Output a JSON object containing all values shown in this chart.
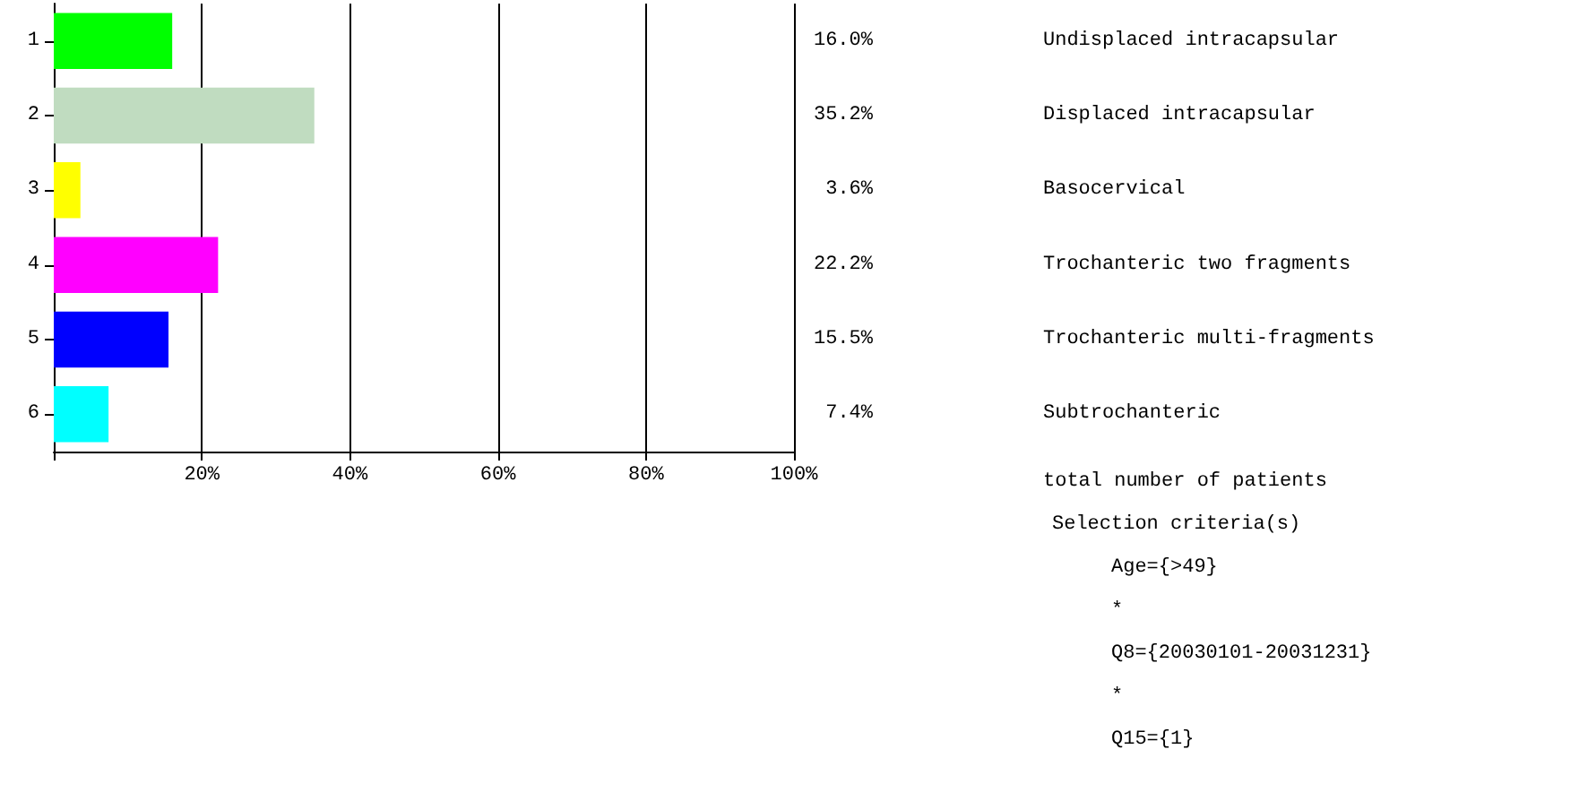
{
  "chart_data": {
    "type": "bar",
    "orientation": "horizontal",
    "categories": [
      "1",
      "2",
      "3",
      "4",
      "5",
      "6"
    ],
    "values": [
      16.0,
      35.2,
      3.6,
      22.2,
      15.5,
      7.4
    ],
    "colors": [
      "#00ff00",
      "#c0dcc0",
      "#ffff00",
      "#ff00ff",
      "#0000ff",
      "#00ffff"
    ],
    "value_labels": [
      "16.0%",
      "35.2%",
      "3.6%",
      "22.2%",
      "15.5%",
      "7.4%"
    ],
    "xlim": [
      0,
      100
    ],
    "xticks": [
      {
        "value": 0,
        "label": null
      },
      {
        "value": 20,
        "label": "20%"
      },
      {
        "value": 40,
        "label": "40%"
      },
      {
        "value": 60,
        "label": "60%"
      },
      {
        "value": 80,
        "label": "80%"
      },
      {
        "value": 100,
        "label": "100%"
      }
    ],
    "grid": "x",
    "annotations": [
      "Undisplaced intracapsular",
      "Displaced intracapsular",
      "Basocervical",
      "Trochanteric two fragments",
      "Trochanteric multi-fragments",
      "Subtrochanteric",
      "total number of patients",
      "Selection criteria(s)",
      "Age={>49}",
      "*",
      "Q8={20030101-20031231}",
      "*",
      "Q15={1}"
    ]
  }
}
